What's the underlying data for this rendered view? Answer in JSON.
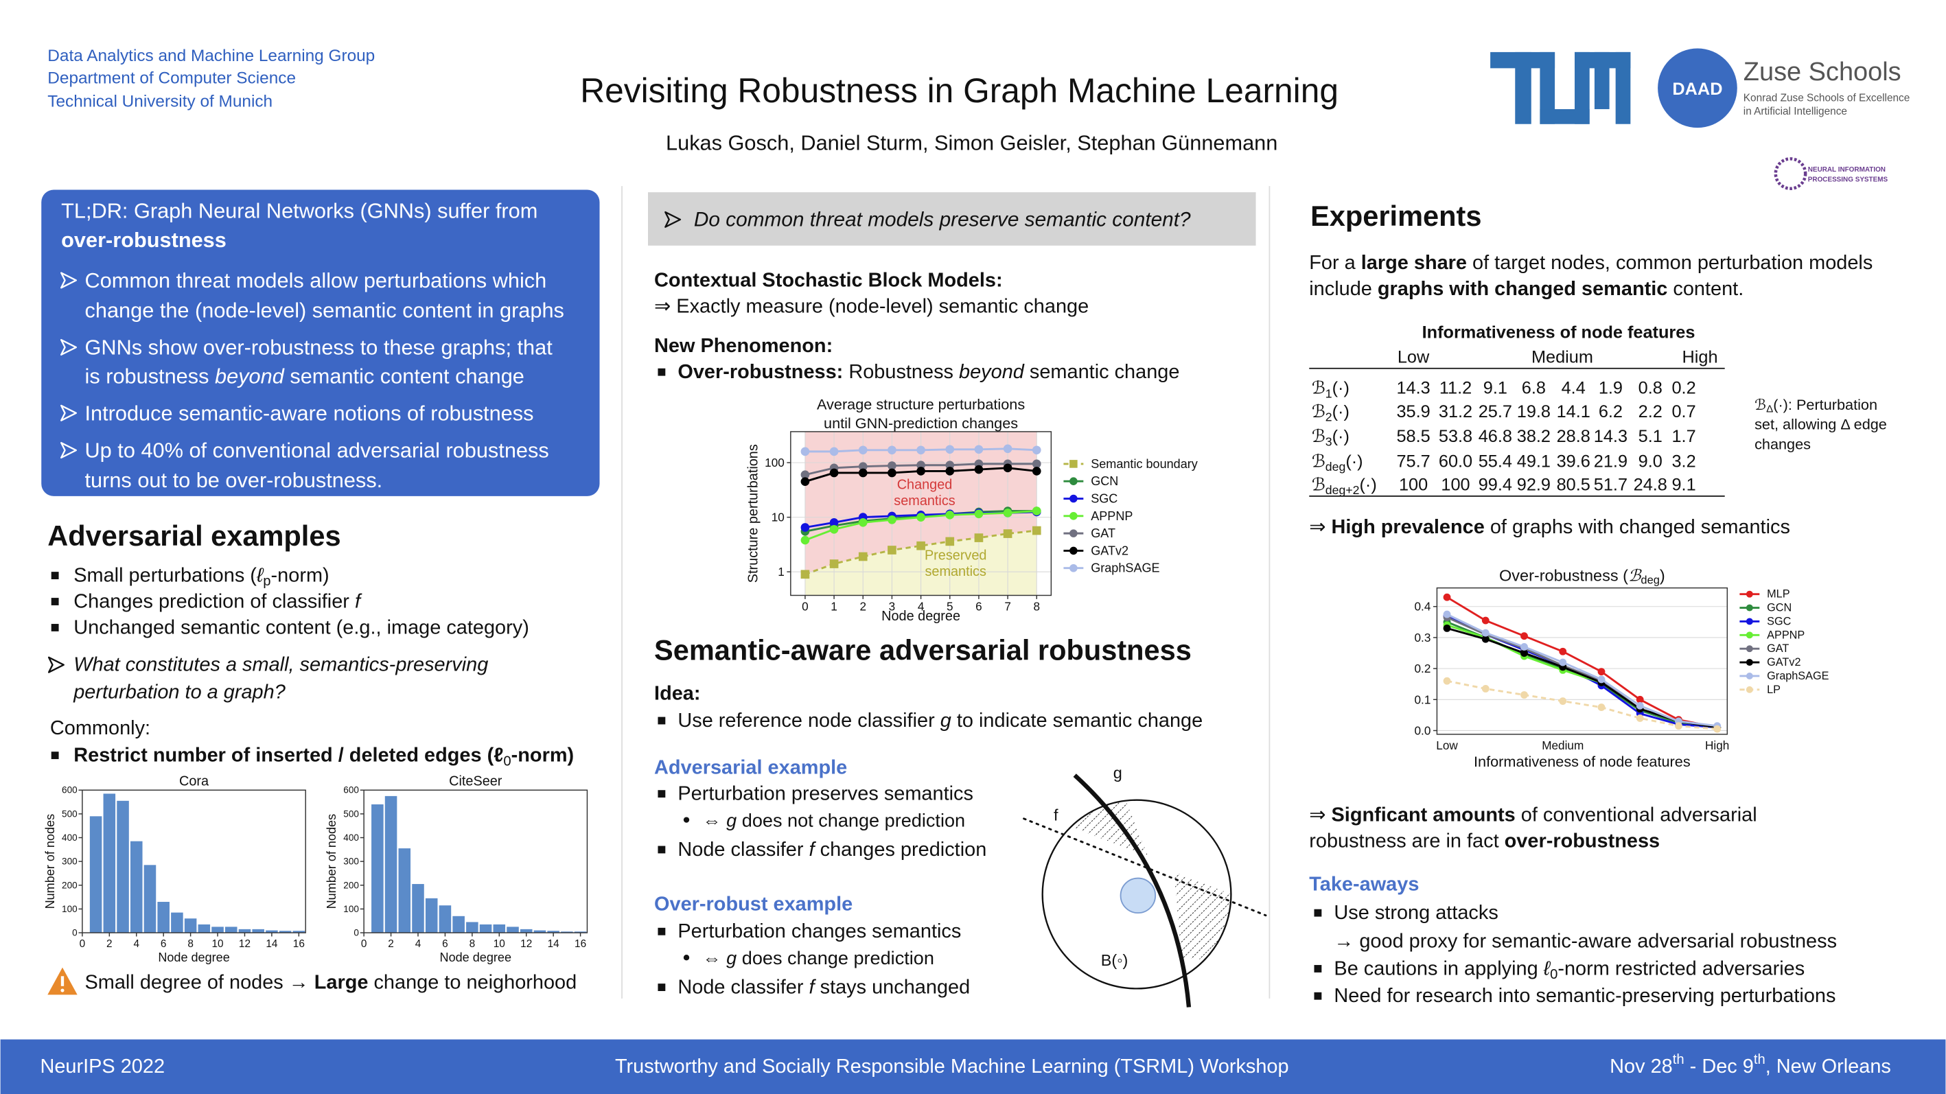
{
  "header": {
    "affiliation": [
      "Data Analytics and Machine Learning Group",
      "Department of Computer Science",
      "Technical University of Munich"
    ],
    "title": "Revisiting Robustness in Graph Machine Learning",
    "authors": "Lukas Gosch, Daniel Sturm, Simon Geisler, Stephan Günnemann",
    "daad": "DAAD",
    "zuse": "Zuse Schools",
    "zuse_note": [
      "Konrad Zuse Schools of Excellence",
      "in Artificial Intelligence"
    ],
    "neurips": [
      "NEURAL INFORMATION",
      "PROCESSING SYSTEMS"
    ]
  },
  "tldr": [
    "TL;DR: Graph Neural Networks (GNNs) suffer from",
    [
      {
        "text": "over-robustness",
        "style": "bold"
      }
    ],
    "Common threat models allow perturbations which",
    "change the (node-level) semantic content in graphs",
    "GNNs show over-robustness to these graphs; that",
    [
      "is robustness ",
      {
        "text": "beyond",
        "style": "italic"
      },
      " semantic content change"
    ],
    "Introduce semantic-aware notions of robustness",
    "Up to 40% of conventional adversarial robustness",
    "turns out to be over-robustness."
  ],
  "adversarial": {
    "heading": "Adversarial examples",
    "bullets": [
      [
        "Small perturbations (",
        {
          "text": "ℓ",
          "style": "italic"
        },
        {
          "text": "p",
          "style": "sub"
        },
        "-norm)"
      ],
      [
        "Changes prediction of classifier ",
        {
          "text": "f",
          "style": "italic"
        }
      ],
      "Unchanged semantic content (e.g., image category)"
    ],
    "question": [
      "What constitutes a small, semantics-preserving",
      "perturbation to a graph?"
    ],
    "commonly": "Commonly:",
    "restrict": [
      {
        "text": "Restrict number of inserted / deleted edges (ℓ",
        "style": "bold"
      },
      {
        "text": "0",
        "style": "sub"
      },
      {
        "text": "-norm)",
        "style": "bold"
      }
    ],
    "warning": [
      "Small degree of nodes → ",
      {
        "text": "Large",
        "style": "bold"
      },
      " change to neighorhood"
    ]
  },
  "question_box": "Do common threat models preserve semantic content?",
  "csbm": {
    "heading": "Contextual Stochastic Block Models:",
    "text": "⇒ Exactly measure (node-level) semantic change",
    "phenomenon": "New Phenomenon:",
    "over": [
      {
        "text": "Over-robustness:",
        "style": "bold"
      },
      " Robustness ",
      {
        "text": "beyond",
        "style": "italic"
      },
      " semantic change"
    ]
  },
  "semantic": {
    "heading": "Semantic-aware adversarial robustness",
    "idea": "Idea:",
    "idea_text": [
      "Use reference node classifier ",
      {
        "text": "g",
        "style": "italic"
      },
      " to indicate semantic change"
    ],
    "adv_heading": "Adversarial example",
    "adv": [
      "Perturbation preserves semantics",
      [
        "⇔ ",
        {
          "text": "g",
          "style": "italic"
        },
        " does not change prediction"
      ],
      [
        "Node classifer ",
        {
          "text": "f",
          "style": "italic"
        },
        " changes prediction"
      ]
    ],
    "over_heading": "Over-robust example",
    "over": [
      "Perturbation changes semantics",
      [
        "⇔ ",
        {
          "text": "g",
          "style": "italic"
        },
        " does change prediction"
      ],
      [
        "Node classifer ",
        {
          "text": "f",
          "style": "italic"
        },
        " stays unchanged"
      ]
    ],
    "diagram": {
      "g": "g",
      "f": "f",
      "ball": "B(◦)"
    }
  },
  "experiments": {
    "heading": "Experiments",
    "intro": [
      [
        "For a ",
        {
          "text": "large share",
          "style": "bold"
        },
        " of target nodes, common perturbation models"
      ],
      [
        "include ",
        {
          "text": "graphs with changed semantic",
          "style": "bold"
        },
        " content."
      ]
    ],
    "table": {
      "caption": "Informativeness of node features",
      "groups": [
        "Low",
        "Medium",
        "High"
      ],
      "rows": [
        {
          "label": [
            "ℬ",
            {
              "text": "1",
              "style": "sub"
            },
            "(·)"
          ],
          "values": [
            "14.3",
            "11.2",
            "9.1",
            "6.8",
            "4.4",
            "1.9",
            "0.8",
            "0.2"
          ]
        },
        {
          "label": [
            "ℬ",
            {
              "text": "2",
              "style": "sub"
            },
            "(·)"
          ],
          "values": [
            "35.9",
            "31.2",
            "25.7",
            "19.8",
            "14.1",
            "6.2",
            "2.2",
            "0.7"
          ]
        },
        {
          "label": [
            "ℬ",
            {
              "text": "3",
              "style": "sub"
            },
            "(·)"
          ],
          "values": [
            "58.5",
            "53.8",
            "46.8",
            "38.2",
            "28.8",
            "14.3",
            "5.1",
            "1.7"
          ]
        },
        {
          "label": [
            "ℬ",
            {
              "text": "deg",
              "style": "sub"
            },
            "(·)"
          ],
          "values": [
            "75.7",
            "60.0",
            "55.4",
            "49.1",
            "39.6",
            "21.9",
            "9.0",
            "3.2"
          ]
        },
        {
          "label": [
            "ℬ",
            {
              "text": "deg+2",
              "style": "sub"
            },
            "(·)"
          ],
          "values": [
            "100",
            "100",
            "99.4",
            "92.9",
            "80.5",
            "51.7",
            "24.8",
            "9.1"
          ]
        }
      ],
      "note": [
        [
          "ℬ",
          {
            "text": "Δ",
            "style": "sub"
          },
          "(·): Perturbation"
        ],
        "set, allowing Δ edge",
        "changes"
      ]
    },
    "prevalence": [
      "⇒ ",
      {
        "text": "High prevalence",
        "style": "bold"
      },
      " of graphs with changed semantics"
    ],
    "significant": [
      [
        "⇒ ",
        {
          "text": "Signficant amounts",
          "style": "bold"
        },
        " of conventional adversarial"
      ],
      [
        "robustness are in fact ",
        {
          "text": "over-robustness",
          "style": "bold"
        }
      ]
    ],
    "takeaways_heading": "Take-aways",
    "takeaways": [
      "Use strong attacks",
      "→ good proxy for semantic-aware adversarial robustness",
      [
        "Be cautions in applying ",
        {
          "text": "ℓ",
          "style": "italic"
        },
        {
          "text": "0",
          "style": "sub"
        },
        "-norm restricted adversaries"
      ],
      "Need for research into semantic-preserving perturbations"
    ]
  },
  "footer": {
    "left": "NeurIPS 2022",
    "center": "Trustworthy and Socially Responsible Machine Learning (TSRML) Workshop",
    "right": [
      "Nov 28",
      {
        "text": "th",
        "style": "sup"
      },
      " - Dec 9",
      {
        "text": "th",
        "style": "sup"
      },
      ", New Orleans"
    ]
  },
  "chart_data": [
    {
      "type": "histogram",
      "title": "Cora",
      "xlabel": "Node degree",
      "ylabel": "Number of nodes",
      "color": "#5b8bc9",
      "bins": [
        0.5,
        1.5,
        2.5,
        3.5,
        4.5,
        5.5,
        6.5,
        7.5,
        8.5,
        9.5,
        10.5,
        11.5,
        12.5,
        13.5,
        14.5,
        15.5,
        16.5
      ],
      "counts": [
        490,
        585,
        555,
        385,
        285,
        130,
        85,
        60,
        35,
        25,
        25,
        15,
        15,
        10,
        8,
        8
      ],
      "xlim": [
        0,
        16.5
      ],
      "ylim": [
        0,
        600
      ],
      "xticks": [
        0,
        2,
        4,
        6,
        8,
        10,
        12,
        14,
        16
      ],
      "yticks": [
        0,
        100,
        200,
        300,
        400,
        500,
        600
      ]
    },
    {
      "type": "histogram",
      "title": "CiteSeer",
      "xlabel": "Node degree",
      "ylabel": "Number of nodes",
      "color": "#5b8bc9",
      "bins": [
        0.5,
        1.5,
        2.5,
        3.5,
        4.5,
        5.5,
        6.5,
        7.5,
        8.5,
        9.5,
        10.5,
        11.5,
        12.5,
        13.5,
        14.5,
        15.5,
        16.5
      ],
      "counts": [
        540,
        575,
        355,
        205,
        145,
        115,
        70,
        45,
        35,
        35,
        25,
        15,
        10,
        8,
        5,
        5
      ],
      "xlim": [
        0,
        16.5
      ],
      "ylim": [
        0,
        600
      ],
      "xticks": [
        0,
        2,
        4,
        6,
        8,
        10,
        12,
        14,
        16
      ],
      "yticks": [
        0,
        100,
        200,
        300,
        400,
        500,
        600
      ]
    },
    {
      "type": "line",
      "title": [
        "Average structure perturbations",
        "until GNN-prediction changes"
      ],
      "xlabel": "Node degree",
      "ylabel": "Structure perturbations",
      "x": [
        0,
        1,
        2,
        3,
        4,
        5,
        6,
        7,
        8
      ],
      "xlim": [
        -0.5,
        8.5
      ],
      "xticks": [
        0,
        1,
        2,
        3,
        4,
        5,
        6,
        7,
        8
      ],
      "ylim": [
        0.37,
        370
      ],
      "yscale": "log",
      "yticks": [
        1,
        10,
        100
      ],
      "grid": true,
      "legend": "right",
      "series": [
        {
          "name": "Semantic boundary",
          "color": "#b5b545",
          "dashed": true,
          "marker": "square",
          "fill_above": "#f7d4d4",
          "fill_below": "#f5f5d2",
          "values": [
            0.9,
            1.4,
            1.9,
            2.5,
            3.0,
            3.6,
            4.2,
            5.0,
            5.7
          ]
        },
        {
          "name": "GCN",
          "color": "#2e8b3e",
          "marker": "circle",
          "values": [
            5.5,
            7,
            8.5,
            9.5,
            10.5,
            11.5,
            12.5,
            13,
            13
          ]
        },
        {
          "name": "SGC",
          "color": "#1414e0",
          "marker": "circle",
          "values": [
            6.5,
            8,
            10,
            10.5,
            11,
            11.5,
            12,
            12,
            12.5
          ]
        },
        {
          "name": "APPNP",
          "color": "#66ee33",
          "marker": "circle",
          "values": [
            3.8,
            6,
            8,
            9,
            10,
            11,
            11.5,
            12,
            13
          ]
        },
        {
          "name": "GAT",
          "color": "#707080",
          "marker": "circle",
          "values": [
            60,
            80,
            85,
            88,
            90,
            90,
            95,
            95,
            95
          ]
        },
        {
          "name": "GATv2",
          "color": "#000000",
          "marker": "circle",
          "values": [
            45,
            65,
            65,
            65,
            70,
            70,
            75,
            80,
            70
          ]
        },
        {
          "name": "GraphSAGE",
          "color": "#aabbe8",
          "marker": "circle",
          "values": [
            160,
            160,
            170,
            170,
            170,
            175,
            175,
            180,
            170
          ]
        }
      ],
      "annotations": [
        {
          "text": [
            "Changed",
            "semantics"
          ],
          "color": "#d43a3a"
        },
        {
          "text": [
            "Preserved",
            "semantics"
          ],
          "color": "#b0a830"
        }
      ]
    },
    {
      "type": "line",
      "title": [
        "Over-robustness (",
        {
          "text": "ℬ",
          "style": "italic"
        },
        {
          "text": "deg",
          "style": "sub"
        },
        ")"
      ],
      "xlabel": "Informativeness of node features",
      "categories": [
        "Low",
        null,
        null,
        "Medium",
        null,
        null,
        null,
        "High"
      ],
      "ylim": [
        -0.012,
        0.46
      ],
      "yticks": [
        {
          "value": 0,
          "label": "0.0"
        },
        0.1,
        0.2,
        0.3,
        0.4
      ],
      "grid": true,
      "legend": "right",
      "series": [
        {
          "name": "MLP",
          "color": "#e02020",
          "marker": "circle",
          "values": [
            0.43,
            0.355,
            0.305,
            0.255,
            0.19,
            0.1,
            0.035,
            0.01
          ]
        },
        {
          "name": "GCN",
          "color": "#2e8b3e",
          "marker": "circle",
          "values": [
            0.35,
            0.3,
            0.245,
            0.2,
            0.15,
            0.065,
            0.025,
            0.01
          ]
        },
        {
          "name": "SGC",
          "color": "#1414e0",
          "marker": "circle",
          "values": [
            0.37,
            0.31,
            0.26,
            0.21,
            0.145,
            0.055,
            0.02,
            0.01
          ]
        },
        {
          "name": "APPNP",
          "color": "#66ee33",
          "marker": "circle",
          "values": [
            0.34,
            0.3,
            0.24,
            0.195,
            0.155,
            0.07,
            0.03,
            0.01
          ]
        },
        {
          "name": "GAT",
          "color": "#707080",
          "marker": "circle",
          "values": [
            0.365,
            0.31,
            0.265,
            0.21,
            0.16,
            0.07,
            0.03,
            0.01
          ]
        },
        {
          "name": "GATv2",
          "color": "#000000",
          "marker": "circle",
          "values": [
            0.33,
            0.295,
            0.25,
            0.205,
            0.155,
            0.07,
            0.03,
            0.01
          ]
        },
        {
          "name": "GraphSAGE",
          "color": "#aabbe8",
          "marker": "circle",
          "values": [
            0.375,
            0.315,
            0.27,
            0.22,
            0.165,
            0.08,
            0.03,
            0.015
          ]
        },
        {
          "name": "LP",
          "color": "#f0d8a8",
          "dashed": true,
          "marker": "circle",
          "values": [
            0.16,
            0.135,
            0.115,
            0.095,
            0.075,
            0.04,
            0.015,
            0.005
          ]
        }
      ]
    }
  ]
}
